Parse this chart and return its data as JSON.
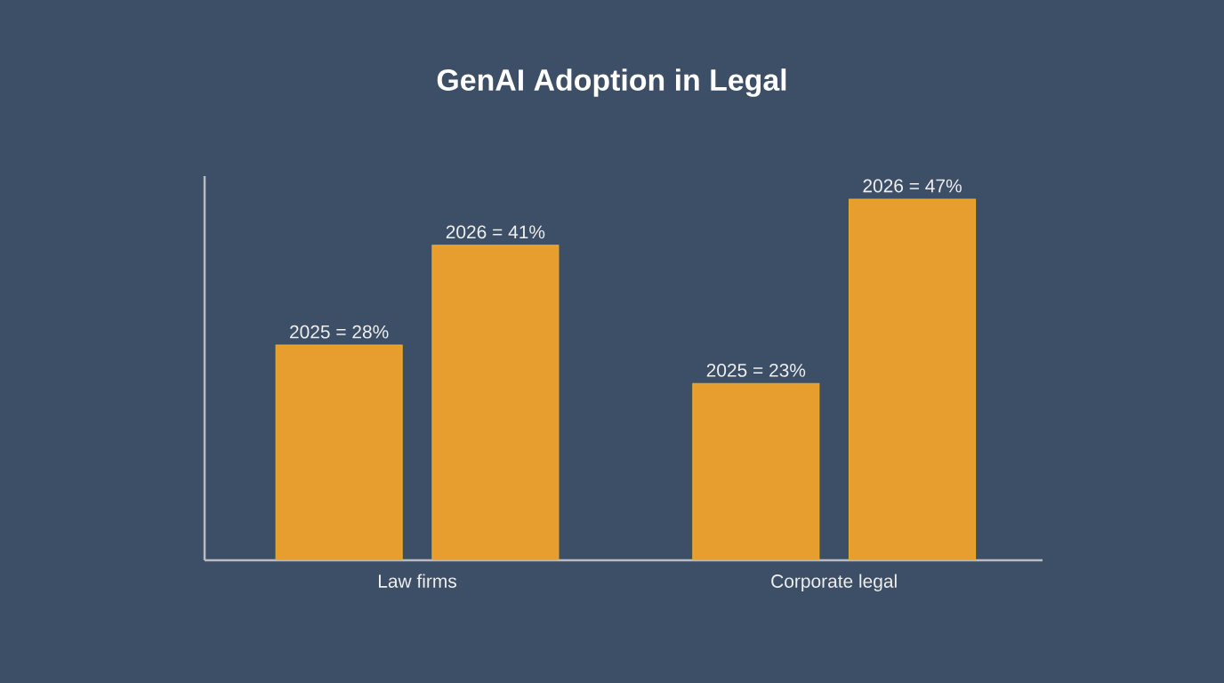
{
  "chart_data": {
    "type": "bar",
    "title": "GenAI Adoption in Legal",
    "categories": [
      "Law firms",
      "Corporate legal"
    ],
    "series": [
      {
        "color": "#e89e2e",
        "values": [
          28,
          23
        ],
        "value_labels": [
          "2025 = 28%",
          "2025 = 23%"
        ]
      },
      {
        "color": "#e89e2e",
        "values": [
          41,
          47
        ],
        "value_labels": [
          "2026 = 41%",
          "2026 = 47%"
        ]
      }
    ],
    "ylim": [
      0,
      50
    ],
    "tick_labels": "x"
  }
}
